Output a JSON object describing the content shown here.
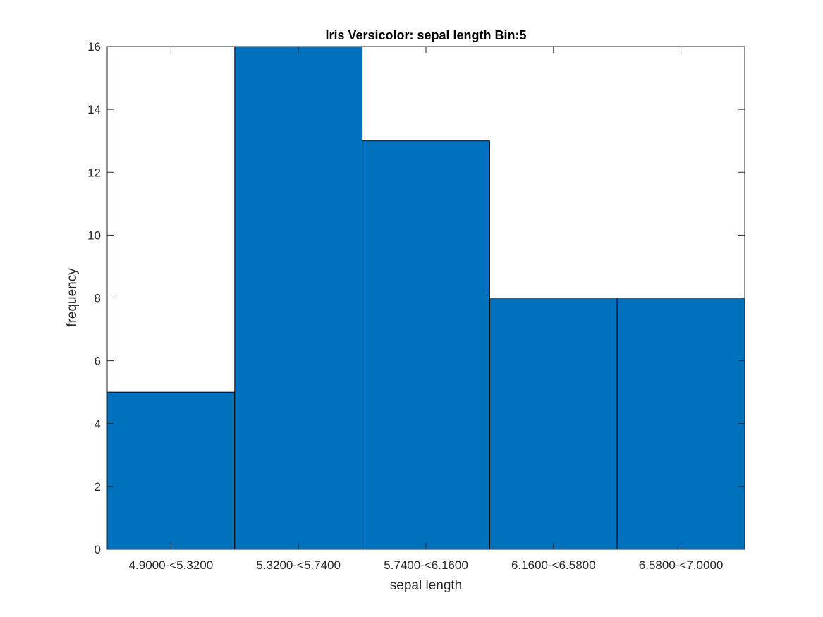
{
  "chart_data": {
    "type": "bar",
    "title": "Iris Versicolor: sepal length Bin:5",
    "xlabel": "sepal length",
    "ylabel": "frequency",
    "categories": [
      "4.9000-<5.3200",
      "5.3200-<5.7400",
      "5.7400-<6.1600",
      "6.1600-<6.5800",
      "6.5800-<7.0000"
    ],
    "values": [
      5,
      16,
      13,
      8,
      8
    ],
    "ylim": [
      0,
      16
    ],
    "yticks": [
      "0",
      "2",
      "4",
      "6",
      "8",
      "10",
      "12",
      "14",
      "16"
    ],
    "grid": false,
    "colors": {
      "bar": "#0072BD",
      "edge": "#000000",
      "axis": "#262626"
    }
  }
}
